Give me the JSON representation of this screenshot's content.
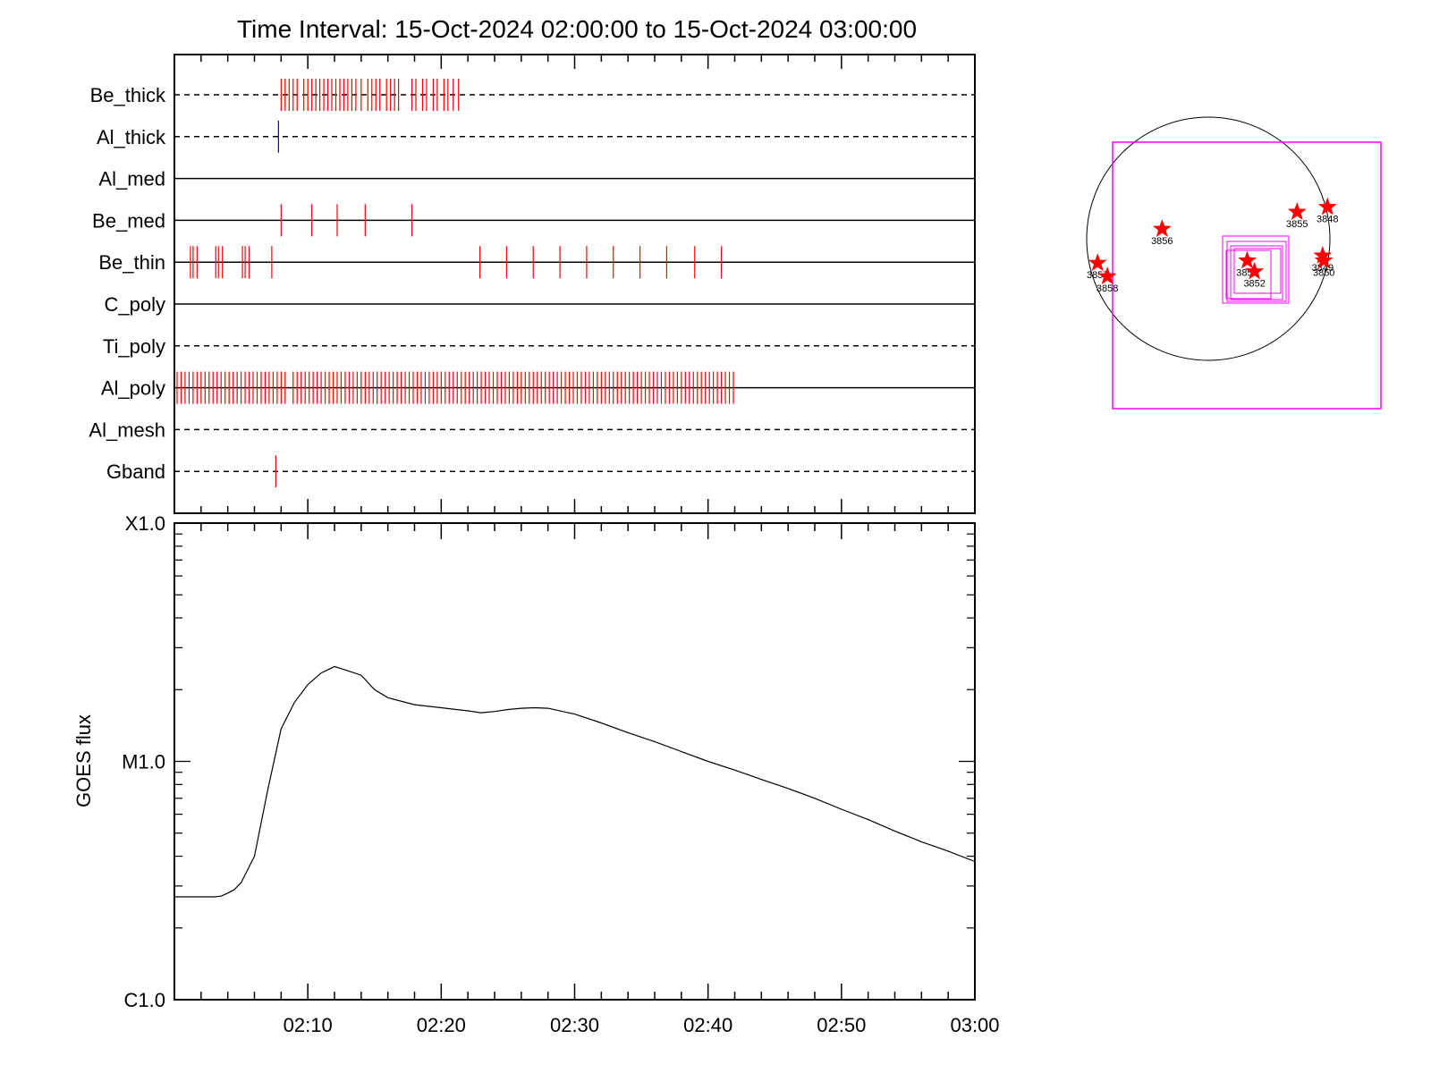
{
  "title": "Time Interval: 15-Oct-2024 02:00:00 to 15-Oct-2024 03:00:00",
  "colors": {
    "axis": "#000000",
    "tick_red": "#ff0000",
    "tick_blue": "#0000cc",
    "fov_box": "#ff00ff",
    "star": "#ff0000"
  },
  "chart_data": [
    {
      "type": "timeline",
      "name": "filter-timeline",
      "x": {
        "start": "02:00",
        "end": "03:00",
        "unit": "minutes after 02:00",
        "range": [
          0,
          60
        ]
      },
      "rows": [
        {
          "label": "Be_thick",
          "line": "dashed",
          "color": "#ff0000",
          "times": [
            8.0,
            8.3,
            8.6,
            8.9,
            9.2,
            9.7,
            10.0,
            10.3,
            10.6,
            10.9,
            11.2,
            11.5,
            11.8,
            12.1,
            12.4,
            12.7,
            13.0,
            13.3,
            13.6,
            14.0,
            14.5,
            14.8,
            15.1,
            15.4,
            15.9,
            16.2,
            16.5,
            16.8,
            17.8,
            18.1,
            18.6,
            18.9,
            19.4,
            19.7,
            20.2,
            20.5,
            20.9,
            21.3
          ]
        },
        {
          "label": "Al_thick",
          "line": "dashed",
          "color": "#0000cc",
          "times": [
            7.8
          ]
        },
        {
          "label": "Al_med",
          "line": "solid",
          "color": "#ff0000",
          "times": []
        },
        {
          "label": "Be_med",
          "line": "solid",
          "color": "#ff0000",
          "times": [
            8.0,
            10.3,
            12.2,
            14.3,
            17.8
          ]
        },
        {
          "label": "Be_thin",
          "line": "solid",
          "color": "#ff0000",
          "times": [
            1.2,
            1.4,
            1.7,
            3.1,
            3.3,
            3.6,
            5.1,
            5.3,
            5.6,
            7.3,
            22.9,
            24.9,
            26.9,
            28.9,
            30.9,
            32.9,
            34.9,
            36.9,
            39.0,
            41.0
          ]
        },
        {
          "label": "C_poly",
          "line": "solid",
          "color": "#ff0000",
          "times": []
        },
        {
          "label": "Ti_poly",
          "line": "dashed",
          "color": "#ff0000",
          "times": []
        },
        {
          "label": "Al_poly",
          "line": "solid",
          "color": "#ff0000",
          "times": [
            0.2,
            0.5,
            0.8,
            1.1,
            1.4,
            1.7,
            2.0,
            2.3,
            2.6,
            2.9,
            3.2,
            3.5,
            3.8,
            4.1,
            4.4,
            4.7,
            5.0,
            5.3,
            5.6,
            5.9,
            6.2,
            6.5,
            6.8,
            7.1,
            7.4,
            7.7,
            8.0,
            8.3,
            8.9,
            9.2,
            9.5,
            9.8,
            10.1,
            10.4,
            10.7,
            11.0,
            11.3,
            11.6,
            11.9,
            12.2,
            12.5,
            12.8,
            13.1,
            13.4,
            13.7,
            14.0,
            14.3,
            14.6,
            14.9,
            15.2,
            15.5,
            15.8,
            16.1,
            16.4,
            16.7,
            17.0,
            17.3,
            17.6,
            17.9,
            18.2,
            18.5,
            18.8,
            19.1,
            19.4,
            19.7,
            20.0,
            20.3,
            20.6,
            20.9,
            21.2,
            21.5,
            21.8,
            22.1,
            22.4,
            22.7,
            23.0,
            23.3,
            23.6,
            23.9,
            24.2,
            24.5,
            24.8,
            25.1,
            25.4,
            25.7,
            26.0,
            26.3,
            26.6,
            26.9,
            27.2,
            27.5,
            27.8,
            28.1,
            28.4,
            28.7,
            29.0,
            29.3,
            29.6,
            29.9,
            30.2,
            30.5,
            30.8,
            31.1,
            31.4,
            31.7,
            32.0,
            32.3,
            32.6,
            32.9,
            33.2,
            33.5,
            33.8,
            34.1,
            34.4,
            34.7,
            35.0,
            35.3,
            35.6,
            35.9,
            36.2,
            36.5,
            36.8,
            37.1,
            37.4,
            37.7,
            38.0,
            38.3,
            38.6,
            38.9,
            39.2,
            39.5,
            39.8,
            40.1,
            40.4,
            40.7,
            41.0,
            41.3,
            41.6,
            41.9
          ]
        },
        {
          "label": "Al_mesh",
          "line": "dashed",
          "color": "#ff0000",
          "times": []
        },
        {
          "label": "Gband",
          "line": "dashed",
          "color": "#ff0000",
          "times": [
            7.6
          ]
        }
      ]
    },
    {
      "type": "line",
      "name": "goes-flux",
      "ylabel": "GOES flux",
      "yscale": "log",
      "ylim": [
        1e-06,
        0.0001
      ],
      "yticks": [
        {
          "value": 1e-06,
          "label": "C1.0"
        },
        {
          "value": 1e-05,
          "label": "M1.0"
        },
        {
          "value": 0.0001,
          "label": "X1.0"
        }
      ],
      "xlim": [
        0,
        60
      ],
      "xticks": [
        {
          "value": 10,
          "label": "02:10"
        },
        {
          "value": 20,
          "label": "02:20"
        },
        {
          "value": 30,
          "label": "02:30"
        },
        {
          "value": 40,
          "label": "02:40"
        },
        {
          "value": 50,
          "label": "02:50"
        },
        {
          "value": 60,
          "label": "03:00"
        }
      ],
      "series": [
        {
          "x": [
            0,
            1,
            2,
            3,
            3.5,
            4,
            4.5,
            5,
            6,
            7,
            8,
            9,
            10,
            11,
            12,
            13,
            14,
            15,
            16,
            18,
            20,
            22,
            23,
            24,
            25,
            26,
            27,
            28,
            30,
            32,
            34,
            36,
            38,
            40,
            42,
            44,
            46,
            48,
            50,
            52,
            54,
            56,
            58,
            60
          ],
          "y": [
            2.7e-06,
            2.7e-06,
            2.7e-06,
            2.7e-06,
            2.72e-06,
            2.8e-06,
            2.9e-06,
            3.1e-06,
            4e-06,
            7.6e-06,
            1.37e-05,
            1.77e-05,
            2.1e-05,
            2.35e-05,
            2.5e-05,
            2.4e-05,
            2.3e-05,
            2e-05,
            1.85e-05,
            1.73e-05,
            1.68e-05,
            1.63e-05,
            1.6e-05,
            1.62e-05,
            1.65e-05,
            1.67e-05,
            1.68e-05,
            1.67e-05,
            1.58e-05,
            1.45e-05,
            1.32e-05,
            1.21e-05,
            1.1e-05,
            1e-05,
            9.2e-06,
            8.4e-06,
            7.7e-06,
            7e-06,
            6.3e-06,
            5.7e-06,
            5.1e-06,
            4.6e-06,
            4.2e-06,
            3.8e-06
          ]
        }
      ]
    },
    {
      "type": "scatter",
      "name": "solar-disk-map",
      "points": [
        {
          "label": "3856",
          "x": -0.38,
          "y": 0.08
        },
        {
          "label": "3855",
          "x": 0.73,
          "y": 0.22
        },
        {
          "label": "3848",
          "x": 0.98,
          "y": 0.26
        },
        {
          "label": "3857",
          "x": -0.91,
          "y": -0.2
        },
        {
          "label": "3858",
          "x": -0.83,
          "y": -0.31
        },
        {
          "label": "3854",
          "x": 0.32,
          "y": -0.18
        },
        {
          "label": "3852",
          "x": 0.38,
          "y": -0.27
        },
        {
          "label": "3849",
          "x": 0.94,
          "y": -0.14
        },
        {
          "label": "3850",
          "x": 0.95,
          "y": -0.18
        }
      ]
    }
  ]
}
